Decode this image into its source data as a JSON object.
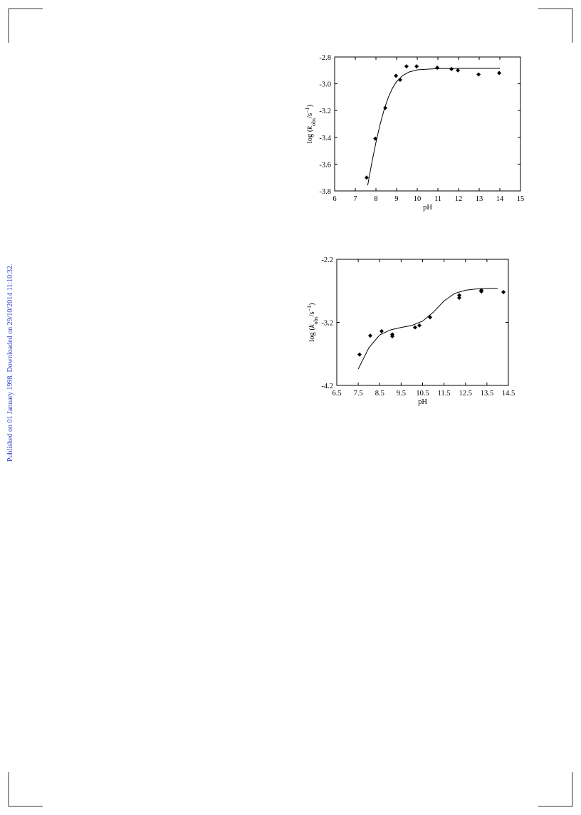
{
  "side_note": "Published on 01 January 1998. Downloaded on 29/10/2014 11:10:32.",
  "chart_data": [
    {
      "type": "scatter",
      "xlabel": "pH",
      "ylabel": [
        "log (",
        "k",
        "obs",
        "/s",
        "−1",
        ")"
      ],
      "xlim": [
        6,
        15
      ],
      "xticks": [
        6,
        7,
        8,
        9,
        10,
        11,
        12,
        13,
        14,
        15
      ],
      "ylim": [
        -3.8,
        -2.8
      ],
      "yticks": [
        -2.8,
        {
          "value": -3.0,
          "label": "-3.0"
        },
        -3.2,
        -3.4,
        -3.6,
        -3.8
      ],
      "series": [
        {
          "style": "markers",
          "color": "#000000",
          "x": [
            7.55,
            7.97,
            8.45,
            8.97,
            9.17,
            9.48,
            9.97,
            10.97,
            11.66,
            11.97,
            12.97,
            13.97
          ],
          "values": [
            -3.7,
            -3.41,
            -3.18,
            -2.94,
            -2.97,
            -2.87,
            -2.87,
            -2.88,
            -2.89,
            -2.9,
            -2.93,
            -2.92
          ]
        },
        {
          "style": "line",
          "color": "#000000",
          "x": [
            7.6,
            7.8,
            8.0,
            8.2,
            8.4,
            8.6,
            8.8,
            9.0,
            9.3,
            9.6,
            10,
            11,
            12,
            13,
            14
          ],
          "values": [
            -3.758,
            -3.59,
            -3.438,
            -3.304,
            -3.191,
            -3.101,
            -3.033,
            -2.984,
            -2.938,
            -2.912,
            -2.896,
            -2.886,
            -2.885,
            -2.885,
            -2.885
          ]
        }
      ]
    },
    {
      "type": "scatter",
      "xlabel": "pH",
      "ylabel": [
        "log (",
        "k",
        "obs",
        "/s",
        "−1",
        ")"
      ],
      "xlim": [
        6.5,
        14.5
      ],
      "xticks": [
        6.5,
        7.5,
        8.5,
        9.5,
        10.5,
        11.5,
        12.5,
        13.5,
        14.5
      ],
      "ylim": [
        -4.2,
        -2.2
      ],
      "yticks": [
        -2.2,
        -3.2,
        -4.2
      ],
      "series": [
        {
          "style": "markers",
          "color": "#000000",
          "x": [
            7.56,
            8.06,
            8.59,
            9.09,
            9.09,
            10.15,
            10.35,
            10.85,
            12.21,
            12.21,
            13.24,
            13.24,
            14.27
          ],
          "values": [
            -3.71,
            -3.41,
            -3.34,
            -3.39,
            -3.42,
            -3.28,
            -3.25,
            -3.12,
            -2.77,
            -2.81,
            -2.69,
            -2.71,
            -2.72
          ]
        },
        {
          "style": "line",
          "color": "#000000",
          "x": [
            7.5,
            8.0,
            8.5,
            9.0,
            9.5,
            10.0,
            10.5,
            11.0,
            11.5,
            12.0,
            12.5,
            13.0,
            13.5,
            14.0
          ],
          "values": [
            -3.94,
            -3.6,
            -3.4,
            -3.32,
            -3.28,
            -3.25,
            -3.18,
            -3.04,
            -2.86,
            -2.74,
            -2.69,
            -2.67,
            -2.66,
            -2.66
          ]
        }
      ]
    }
  ]
}
